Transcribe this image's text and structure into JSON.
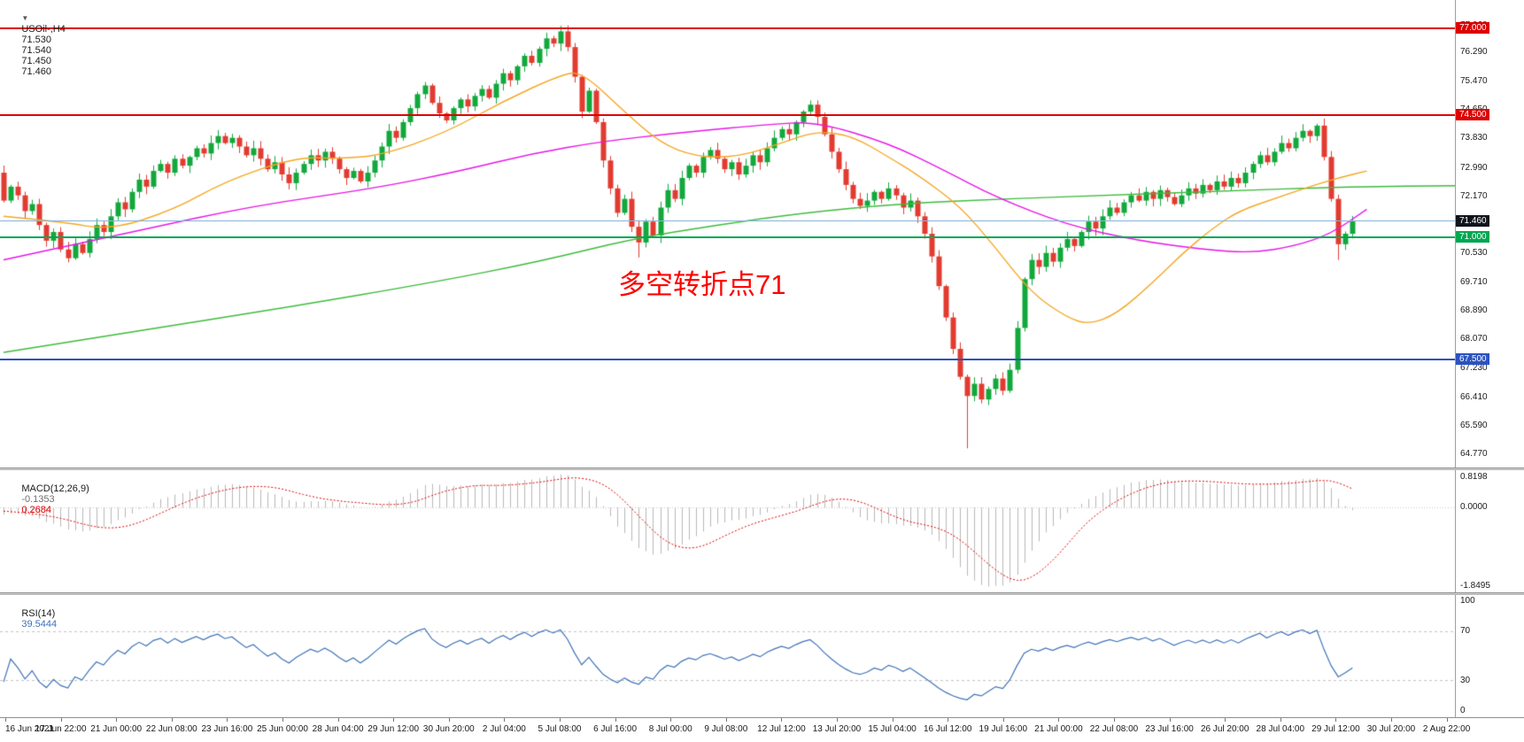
{
  "header": {
    "marker": "▼",
    "symbol_period": "USOil-,H4",
    "open": "71.530",
    "high": "71.540",
    "low": "71.450",
    "close": "71.460"
  },
  "annotation": {
    "text": "多空转折点71",
    "color": "#FF0000"
  },
  "panes": {
    "macd": {
      "label": "MACD(12,26,9)",
      "value_main": "-0.1353",
      "value_signal": "0.2684",
      "axis": [
        "0.8198",
        "0.0000",
        "-1.8495"
      ],
      "scale": {
        "min": -1.8495,
        "max": 0.8198
      },
      "colors": {
        "hist": "#b8b8b8",
        "signal": "#dd0000",
        "value_main": "#707070"
      }
    },
    "rsi": {
      "label": "RSI(14)",
      "value": "39.5444",
      "levels": [
        70,
        30
      ],
      "axis": [
        "100",
        "70",
        "30",
        "0"
      ],
      "scale": {
        "min": 0,
        "max": 100
      },
      "color": "#3E72B8"
    }
  },
  "time_axis": {
    "labels": [
      "16 Jun 2021",
      "17 Jun 22:00",
      "21 Jun 00:00",
      "22 Jun 08:00",
      "23 Jun 16:00",
      "25 Jun 00:00",
      "28 Jun 04:00",
      "29 Jun 12:00",
      "30 Jun 20:00",
      "2 Jul 04:00",
      "5 Jul 08:00",
      "6 Jul 16:00",
      "8 Jul 00:00",
      "9 Jul 08:00",
      "12 Jul 12:00",
      "13 Jul 20:00",
      "15 Jul 04:00",
      "16 Jul 12:00",
      "19 Jul 16:00",
      "21 Jul 00:00",
      "22 Jul 08:00",
      "23 Jul 16:00",
      "26 Jul 20:00",
      "28 Jul 04:00",
      "29 Jul 12:00",
      "30 Jul 20:00",
      "2 Aug 22:00"
    ]
  },
  "chart_data": {
    "type": "candlestick",
    "symbol": "USOil-",
    "timeframe": "H4",
    "ylim": [
      64.4,
      77.8
    ],
    "price_ticks": [
      77.06,
      76.29,
      75.47,
      74.65,
      73.83,
      72.99,
      72.17,
      71.35,
      70.53,
      69.71,
      68.89,
      68.07,
      67.23,
      66.41,
      65.59,
      64.77
    ],
    "bull_color": "#12a83c",
    "bear_color": "#e23b30",
    "first_open": 72.85,
    "closes": [
      72.05,
      72.45,
      72.2,
      71.75,
      71.95,
      71.35,
      70.9,
      71.15,
      70.65,
      70.4,
      70.8,
      70.55,
      70.95,
      71.35,
      71.15,
      71.6,
      72.0,
      71.8,
      72.3,
      72.65,
      72.45,
      72.9,
      73.1,
      72.85,
      73.25,
      73.05,
      73.3,
      73.55,
      73.4,
      73.7,
      73.9,
      73.7,
      73.85,
      73.6,
      73.35,
      73.55,
      73.25,
      72.95,
      73.15,
      72.8,
      72.55,
      72.85,
      73.1,
      73.35,
      73.2,
      73.45,
      73.25,
      72.95,
      72.7,
      72.9,
      72.6,
      72.85,
      73.2,
      73.6,
      74.05,
      73.85,
      74.3,
      74.7,
      75.1,
      75.35,
      74.85,
      74.55,
      74.35,
      74.7,
      74.95,
      74.75,
      75.05,
      75.25,
      75.0,
      75.4,
      75.7,
      75.5,
      75.9,
      76.2,
      76.0,
      76.4,
      76.7,
      76.55,
      76.9,
      76.45,
      75.6,
      74.6,
      75.2,
      74.3,
      73.2,
      72.4,
      71.7,
      72.1,
      71.3,
      70.85,
      71.45,
      71.05,
      71.85,
      72.35,
      72.1,
      72.7,
      73.05,
      72.85,
      73.3,
      73.5,
      73.25,
      72.95,
      73.15,
      72.8,
      73.05,
      73.35,
      73.15,
      73.55,
      73.85,
      74.1,
      73.95,
      74.3,
      74.6,
      74.8,
      74.45,
      73.95,
      73.45,
      72.95,
      72.5,
      72.1,
      71.9,
      72.05,
      72.3,
      72.1,
      72.4,
      72.2,
      71.85,
      72.05,
      71.6,
      71.1,
      70.45,
      69.6,
      68.7,
      67.8,
      67.0,
      66.45,
      66.8,
      66.35,
      66.65,
      66.95,
      66.6,
      67.2,
      68.4,
      69.8,
      70.35,
      70.15,
      70.55,
      70.3,
      70.7,
      70.95,
      70.75,
      71.15,
      71.45,
      71.25,
      71.6,
      71.85,
      71.7,
      72.0,
      72.2,
      72.05,
      72.3,
      72.1,
      72.35,
      72.15,
      71.95,
      72.2,
      72.4,
      72.25,
      72.5,
      72.35,
      72.6,
      72.45,
      72.7,
      72.55,
      72.85,
      73.1,
      73.35,
      73.15,
      73.45,
      73.7,
      73.55,
      73.85,
      74.05,
      73.9,
      74.2,
      73.3,
      72.1,
      70.8,
      71.1,
      71.46
    ],
    "wick_high": {
      "59": 75.45,
      "78": 77.06,
      "113": 74.92
    },
    "wick_low": {
      "9": 70.28,
      "89": 70.42,
      "135": 64.95,
      "187": 70.35
    },
    "hlines": [
      {
        "price": 77.0,
        "label": "77.000",
        "color": "#dd0000",
        "width": 2
      },
      {
        "price": 74.5,
        "label": "74.500",
        "color": "#dd0000",
        "width": 2
      },
      {
        "price": 71.46,
        "label": "71.460",
        "color": "#8ab4d8",
        "width": 1,
        "badge_bg": "#10141c"
      },
      {
        "price": 71.0,
        "label": "71.000",
        "color": "#00a651",
        "width": 2
      },
      {
        "price": 67.5,
        "label": "67.500",
        "color": "#2b53c0",
        "width": 2
      }
    ],
    "ma_lines": [
      {
        "name": "ma-long-green",
        "color": "#3dbb3d",
        "points": [
          [
            0,
            67.7
          ],
          [
            20,
            68.35
          ],
          [
            40,
            69.0
          ],
          [
            60,
            69.7
          ],
          [
            75,
            70.3
          ],
          [
            88,
            70.95
          ],
          [
            100,
            71.35
          ],
          [
            112,
            71.7
          ],
          [
            125,
            71.95
          ],
          [
            140,
            72.1
          ],
          [
            155,
            72.2
          ],
          [
            170,
            72.32
          ],
          [
            189,
            72.45
          ],
          [
            204,
            72.48
          ]
        ]
      },
      {
        "name": "ma-medium-magenta",
        "color": "#e816e8",
        "points": [
          [
            0,
            70.35
          ],
          [
            19,
            71.2
          ],
          [
            35,
            71.9
          ],
          [
            52,
            72.4
          ],
          [
            64,
            72.9
          ],
          [
            74,
            73.4
          ],
          [
            84,
            73.75
          ],
          [
            95,
            74.0
          ],
          [
            108,
            74.25
          ],
          [
            114,
            74.3
          ],
          [
            124,
            73.7
          ],
          [
            132,
            72.9
          ],
          [
            139,
            72.15
          ],
          [
            149,
            71.35
          ],
          [
            159,
            70.9
          ],
          [
            168,
            70.65
          ],
          [
            175,
            70.55
          ],
          [
            181,
            70.75
          ],
          [
            186,
            71.1
          ],
          [
            191,
            71.8
          ]
        ]
      },
      {
        "name": "ma-fast-orange",
        "color": "#f5a623",
        "points": [
          [
            0,
            71.6
          ],
          [
            8,
            71.45
          ],
          [
            15,
            71.2
          ],
          [
            24,
            71.8
          ],
          [
            31,
            72.6
          ],
          [
            41,
            73.3
          ],
          [
            47,
            73.25
          ],
          [
            53,
            73.35
          ],
          [
            62,
            74.0
          ],
          [
            70,
            74.9
          ],
          [
            78,
            75.65
          ],
          [
            81,
            75.75
          ],
          [
            87,
            74.6
          ],
          [
            92,
            73.7
          ],
          [
            97,
            73.3
          ],
          [
            103,
            73.3
          ],
          [
            109,
            73.7
          ],
          [
            114,
            74.05
          ],
          [
            119,
            73.9
          ],
          [
            124,
            73.3
          ],
          [
            128,
            72.8
          ],
          [
            134,
            71.9
          ],
          [
            139,
            70.7
          ],
          [
            144,
            69.4
          ],
          [
            149,
            68.7
          ],
          [
            152,
            68.5
          ],
          [
            156,
            68.8
          ],
          [
            161,
            69.7
          ],
          [
            165,
            70.5
          ],
          [
            169,
            71.2
          ],
          [
            173,
            71.75
          ],
          [
            178,
            72.1
          ],
          [
            183,
            72.45
          ],
          [
            187,
            72.7
          ],
          [
            191,
            72.9
          ]
        ]
      }
    ]
  }
}
